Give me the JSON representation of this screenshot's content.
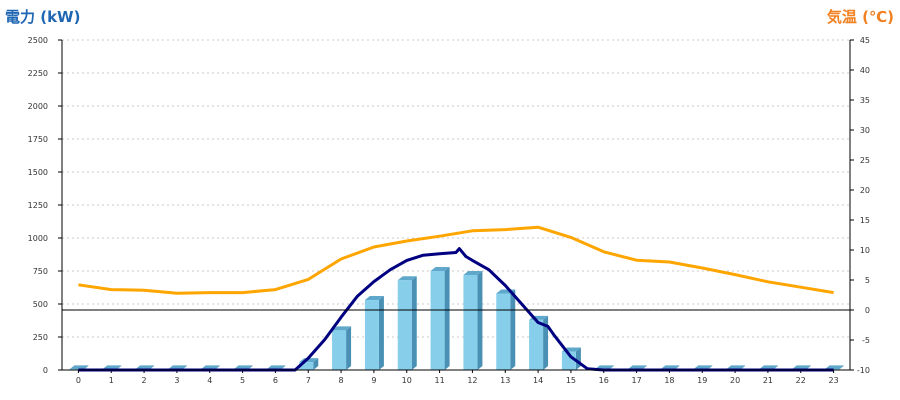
{
  "chart_data": {
    "type": "bar",
    "title_left": "電力 (kW)",
    "title_right": "気温 (℃)",
    "categories": [
      "0",
      "1",
      "2",
      "3",
      "4",
      "5",
      "6",
      "7",
      "8",
      "9",
      "10",
      "11",
      "12",
      "13",
      "14",
      "15",
      "16",
      "17",
      "18",
      "19",
      "20",
      "21",
      "22",
      "23"
    ],
    "y_left": {
      "min": 0,
      "max": 2500,
      "ticks": [
        0,
        250,
        500,
        750,
        1000,
        1250,
        1500,
        1750,
        2000,
        2250,
        2500
      ]
    },
    "y_right": {
      "min": -10,
      "max": 45,
      "ticks": [
        -10,
        -5,
        0,
        5,
        10,
        15,
        20,
        25,
        30,
        35,
        40,
        45
      ]
    },
    "grid": true,
    "colors": {
      "bar": "#87ceeb",
      "bar_side": "#4a90b5",
      "bar_top": "#5fa8cc",
      "power_line": "#000080",
      "temp_line": "#ffa500"
    },
    "series": [
      {
        "type": "bar",
        "axis": "left",
        "values": [
          5,
          5,
          5,
          5,
          5,
          5,
          5,
          60,
          300,
          530,
          680,
          750,
          720,
          580,
          380,
          140,
          5,
          5,
          5,
          5,
          5,
          5,
          5,
          5
        ]
      },
      {
        "type": "line",
        "axis": "left",
        "x": [
          0,
          1,
          2,
          3,
          4,
          5,
          6,
          6.6,
          7,
          7.5,
          8,
          8.5,
          9,
          9.5,
          10,
          10.5,
          11,
          11.5,
          11.6,
          11.8,
          12,
          12.5,
          13,
          13.5,
          14,
          14.3,
          14.5,
          15,
          15.5,
          16,
          17,
          18,
          19,
          20,
          21,
          22,
          23
        ],
        "values": [
          0,
          0,
          0,
          0,
          0,
          0,
          0,
          0,
          90,
          230,
          400,
          560,
          670,
          760,
          830,
          870,
          880,
          890,
          920,
          860,
          830,
          760,
          640,
          500,
          360,
          330,
          260,
          100,
          10,
          0,
          0,
          0,
          0,
          0,
          0,
          0,
          0
        ]
      },
      {
        "type": "line",
        "axis": "right",
        "x": [
          0,
          1,
          2,
          3,
          4,
          5,
          6,
          7,
          8,
          9,
          10,
          11,
          12,
          13,
          14,
          15,
          16,
          17,
          18,
          19,
          20,
          21,
          22,
          23
        ],
        "values": [
          4.2,
          3.4,
          3.3,
          2.8,
          2.9,
          2.9,
          3.4,
          5.1,
          8.5,
          10.5,
          11.5,
          12.3,
          13.2,
          13.4,
          13.8,
          12.1,
          9.7,
          8.3,
          8.0,
          7.0,
          5.9,
          4.7,
          3.8,
          2.9
        ]
      }
    ]
  }
}
